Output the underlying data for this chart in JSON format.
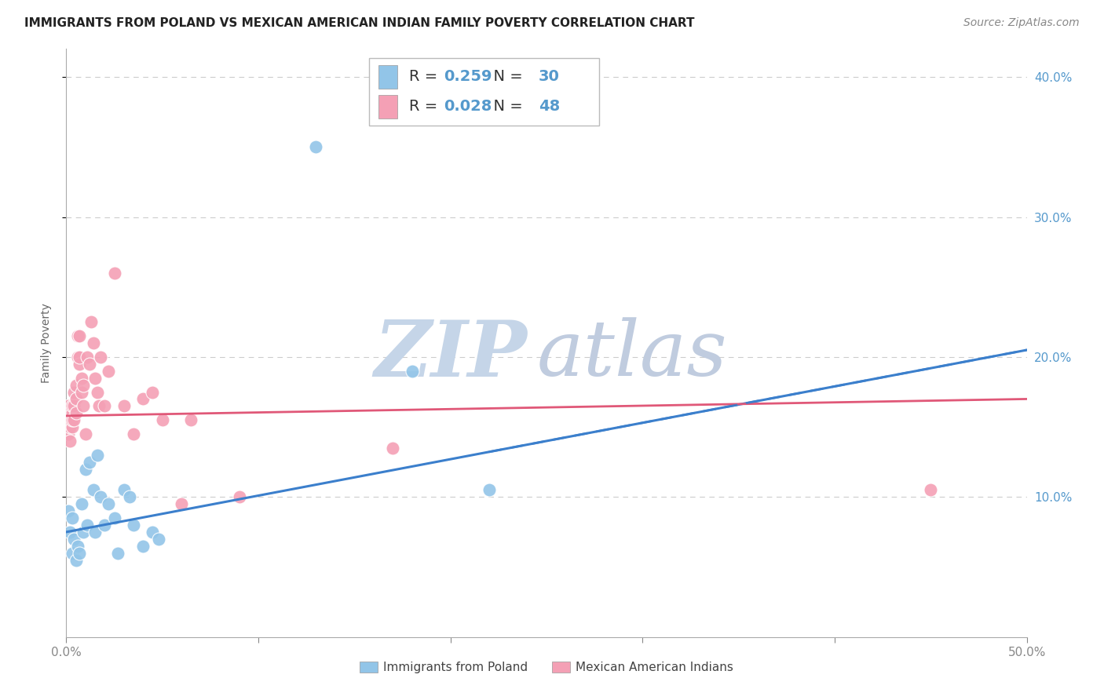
{
  "title": "IMMIGRANTS FROM POLAND VS MEXICAN AMERICAN INDIAN FAMILY POVERTY CORRELATION CHART",
  "source": "Source: ZipAtlas.com",
  "ylabel": "Family Poverty",
  "xlim": [
    0.0,
    0.5
  ],
  "ylim": [
    0.0,
    0.42
  ],
  "xticks": [
    0.0,
    0.1,
    0.2,
    0.3,
    0.4,
    0.5
  ],
  "xtick_labels": [
    "0.0%",
    "",
    "",
    "",
    "",
    "50.0%"
  ],
  "ytick_positions": [
    0.1,
    0.2,
    0.3,
    0.4
  ],
  "ytick_labels": [
    "10.0%",
    "20.0%",
    "30.0%",
    "40.0%"
  ],
  "poland_R": 0.259,
  "poland_N": 30,
  "mexican_R": 0.028,
  "mexican_N": 48,
  "poland_color": "#92C5E8",
  "polish_line_color": "#3B7FCC",
  "mexican_color": "#F4A0B5",
  "mexican_line_color": "#E05878",
  "poland_scatter_x": [
    0.001,
    0.002,
    0.003,
    0.003,
    0.004,
    0.005,
    0.006,
    0.007,
    0.008,
    0.009,
    0.01,
    0.011,
    0.012,
    0.014,
    0.015,
    0.016,
    0.018,
    0.02,
    0.022,
    0.025,
    0.027,
    0.03,
    0.033,
    0.035,
    0.04,
    0.045,
    0.048,
    0.13,
    0.18,
    0.22
  ],
  "poland_scatter_y": [
    0.09,
    0.075,
    0.06,
    0.085,
    0.07,
    0.055,
    0.065,
    0.06,
    0.095,
    0.075,
    0.12,
    0.08,
    0.125,
    0.105,
    0.075,
    0.13,
    0.1,
    0.08,
    0.095,
    0.085,
    0.06,
    0.105,
    0.1,
    0.08,
    0.065,
    0.075,
    0.07,
    0.35,
    0.19,
    0.105
  ],
  "mexican_scatter_x": [
    0.001,
    0.001,
    0.001,
    0.002,
    0.002,
    0.002,
    0.002,
    0.003,
    0.003,
    0.003,
    0.003,
    0.004,
    0.004,
    0.004,
    0.005,
    0.005,
    0.005,
    0.006,
    0.006,
    0.007,
    0.007,
    0.007,
    0.008,
    0.008,
    0.009,
    0.009,
    0.01,
    0.011,
    0.012,
    0.013,
    0.014,
    0.015,
    0.016,
    0.017,
    0.018,
    0.02,
    0.022,
    0.025,
    0.03,
    0.035,
    0.04,
    0.045,
    0.05,
    0.06,
    0.065,
    0.09,
    0.17,
    0.45
  ],
  "mexican_scatter_y": [
    0.145,
    0.155,
    0.165,
    0.15,
    0.16,
    0.14,
    0.155,
    0.16,
    0.15,
    0.165,
    0.155,
    0.165,
    0.155,
    0.175,
    0.17,
    0.18,
    0.16,
    0.2,
    0.215,
    0.215,
    0.195,
    0.2,
    0.175,
    0.185,
    0.165,
    0.18,
    0.145,
    0.2,
    0.195,
    0.225,
    0.21,
    0.185,
    0.175,
    0.165,
    0.2,
    0.165,
    0.19,
    0.26,
    0.165,
    0.145,
    0.17,
    0.175,
    0.155,
    0.095,
    0.155,
    0.1,
    0.135,
    0.105
  ],
  "watermark_zip": "ZIP",
  "watermark_atlas": "atlas",
  "watermark_color_zip": "#C8D8EC",
  "watermark_color_atlas": "#C0D0E8",
  "background_color": "#FFFFFF",
  "grid_color": "#CCCCCC",
  "axis_color": "#AAAAAA",
  "tick_color": "#5599CC",
  "title_fontsize": 11,
  "source_fontsize": 10,
  "label_fontsize": 10,
  "tick_fontsize": 11,
  "legend_fontsize": 14
}
